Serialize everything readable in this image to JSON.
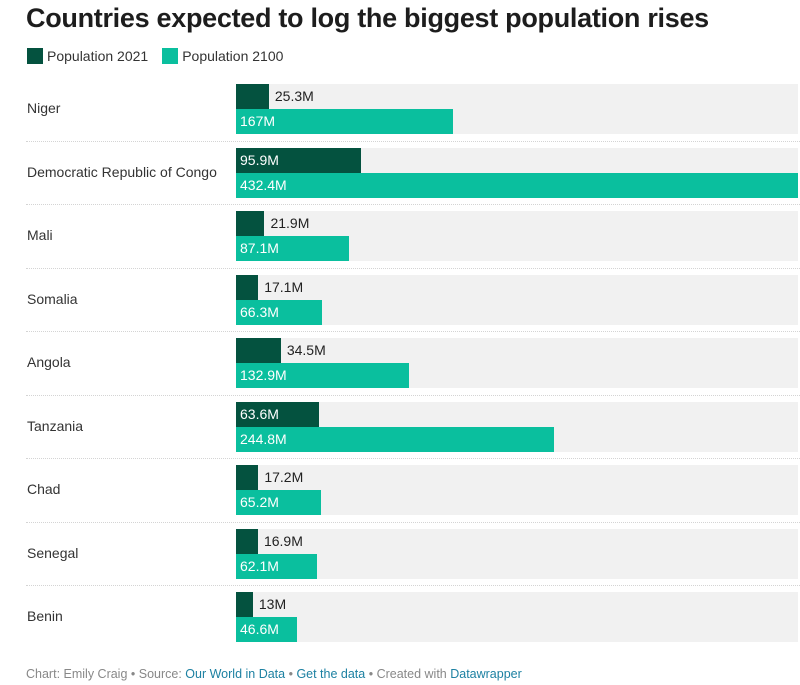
{
  "colors": {
    "pop2021": "#04523f",
    "pop2100": "#0abf9e",
    "track": "#f1f1f1",
    "link": "#1d81a2"
  },
  "chart_data": {
    "type": "bar",
    "orientation": "horizontal",
    "title": "Countries expected to log the biggest population rises",
    "legend": [
      {
        "name": "Population 2021",
        "color": "#04523f"
      },
      {
        "name": "Population 2100",
        "color": "#0abf9e"
      }
    ],
    "legend_position": "top-left",
    "unit": "M",
    "xlim": [
      0,
      432.4
    ],
    "categories": [
      "Niger",
      "Democratic Republic of Congo",
      "Mali",
      "Somalia",
      "Angola",
      "Tanzania",
      "Chad",
      "Senegal",
      "Benin"
    ],
    "series": [
      {
        "name": "Population 2021",
        "values": [
          25.3,
          95.9,
          21.9,
          17.1,
          34.5,
          63.6,
          17.2,
          16.9,
          13
        ],
        "labels": [
          "25.3M",
          "95.9M",
          "21.9M",
          "17.1M",
          "34.5M",
          "63.6M",
          "17.2M",
          "16.9M",
          "13M"
        ]
      },
      {
        "name": "Population 2100",
        "values": [
          167,
          432.4,
          87.1,
          66.3,
          132.9,
          244.8,
          65.2,
          62.1,
          46.6
        ],
        "labels": [
          "167M",
          "432.4M",
          "87.1M",
          "66.3M",
          "132.9M",
          "244.8M",
          "65.2M",
          "62.1M",
          "46.6M"
        ]
      }
    ]
  },
  "footer": {
    "prefix": "Chart: Emily Craig • Source: ",
    "source_link": "Our World in Data",
    "sep1": " • ",
    "data_link": "Get the data",
    "sep2": " • Created with ",
    "dw_link": "Datawrapper"
  }
}
